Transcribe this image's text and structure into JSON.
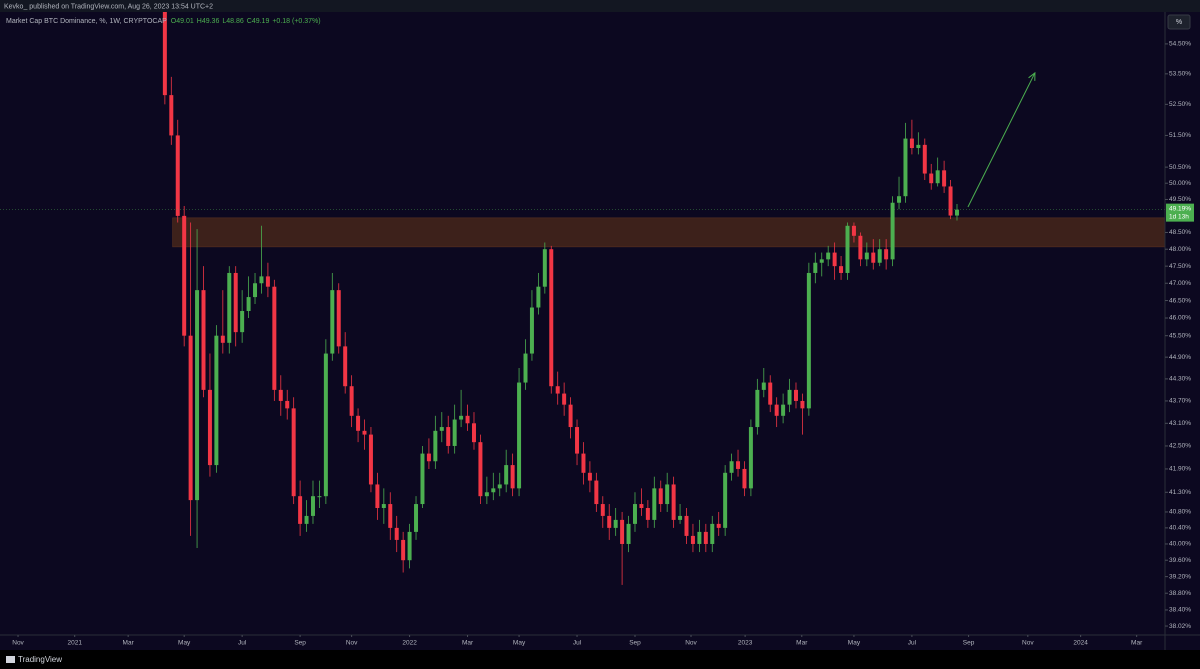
{
  "header": {
    "published": "Kevko_ published on TradingView.com, Aug 26, 2023 13:54 UTC+2",
    "legend": {
      "title": "Market Cap BTC Dominance, %, 1W, CRYPTOCAP",
      "open": "O49.01",
      "high": "H49.36",
      "low": "L48.86",
      "close": "C49.19",
      "change": "+0.18 (+0.37%)"
    },
    "scale_button": "%"
  },
  "footer": {
    "brand": "TradingView"
  },
  "chart_data": {
    "type": "candlestick",
    "up_color": "#4caf50",
    "down_color": "#f23645",
    "log": true,
    "open": [
      55.8,
      52.8,
      51.5,
      49.0,
      45.5,
      41.1,
      46.8,
      44.0,
      42.0,
      45.5,
      45.3,
      47.3,
      45.6,
      46.2,
      46.6,
      47.0,
      47.2,
      46.9,
      44.0,
      43.7,
      43.5,
      41.2,
      40.5,
      40.7,
      41.2,
      41.2,
      45.0,
      46.8,
      45.2,
      44.1,
      43.3,
      42.9,
      42.8,
      41.5,
      40.9,
      41.0,
      40.4,
      40.1,
      39.6,
      40.3,
      41.0,
      42.3,
      42.1,
      42.9,
      43.0,
      42.5,
      43.2,
      43.3,
      43.1,
      42.6,
      41.2,
      41.3,
      41.4,
      41.5,
      42.0,
      41.4,
      44.2,
      45.0,
      46.3,
      46.9,
      48.0,
      44.1,
      43.9,
      43.6,
      43.0,
      42.3,
      41.8,
      41.6,
      41.0,
      40.7,
      40.4,
      40.6,
      40.0,
      40.5,
      41.0,
      40.9,
      40.6,
      41.4,
      41.0,
      41.5,
      40.6,
      40.7,
      40.2,
      40.0,
      40.3,
      40.0,
      40.5,
      40.4,
      41.8,
      42.1,
      41.9,
      41.4,
      43.0,
      44.0,
      44.2,
      43.6,
      43.3,
      43.6,
      44.0,
      43.7,
      43.5,
      47.3,
      47.6,
      47.7,
      47.9,
      47.5,
      47.3,
      48.7,
      48.4,
      47.7,
      47.9,
      47.6,
      48.0,
      47.7,
      49.4,
      49.6,
      51.4,
      51.1,
      51.2,
      50.3,
      50.0,
      50.4,
      49.9,
      49.01
    ],
    "high": [
      56.0,
      53.4,
      52.0,
      49.3,
      48.8,
      48.6,
      47.5,
      45.0,
      45.8,
      46.8,
      47.5,
      47.5,
      46.8,
      47.2,
      47.3,
      48.7,
      47.6,
      47.1,
      44.4,
      44.0,
      43.8,
      41.6,
      41.1,
      41.6,
      41.6,
      45.4,
      47.3,
      47.0,
      45.6,
      44.4,
      43.5,
      43.2,
      43.0,
      41.8,
      41.4,
      41.3,
      40.7,
      40.3,
      40.5,
      41.2,
      42.5,
      42.7,
      43.3,
      43.4,
      43.3,
      43.6,
      44.0,
      43.6,
      43.4,
      42.8,
      41.7,
      41.8,
      41.8,
      42.4,
      42.3,
      44.6,
      45.4,
      46.8,
      47.3,
      48.2,
      48.1,
      44.5,
      44.2,
      43.8,
      43.2,
      42.6,
      42.1,
      41.8,
      41.2,
      41.0,
      40.9,
      40.8,
      40.7,
      41.3,
      41.4,
      41.1,
      41.7,
      41.6,
      41.8,
      41.7,
      41.0,
      40.9,
      40.5,
      40.6,
      40.5,
      40.7,
      40.8,
      42.0,
      42.3,
      42.4,
      42.1,
      43.2,
      44.3,
      44.6,
      44.4,
      43.8,
      43.9,
      44.3,
      44.2,
      43.9,
      47.6,
      47.9,
      47.9,
      48.1,
      48.2,
      47.8,
      48.8,
      48.8,
      48.5,
      48.2,
      48.3,
      48.3,
      48.3,
      49.6,
      50.2,
      51.9,
      52.0,
      51.6,
      51.4,
      50.6,
      50.8,
      50.7,
      50.1,
      49.36
    ],
    "low": [
      52.5,
      51.2,
      48.8,
      45.2,
      40.2,
      39.9,
      43.8,
      41.7,
      41.8,
      45.0,
      45.0,
      45.2,
      45.3,
      46.0,
      46.4,
      46.7,
      46.6,
      43.7,
      43.3,
      43.2,
      41.0,
      40.2,
      40.3,
      40.5,
      40.9,
      41.0,
      44.8,
      45.0,
      43.9,
      43.0,
      42.6,
      42.4,
      41.3,
      40.6,
      40.5,
      40.1,
      39.8,
      39.3,
      39.4,
      40.1,
      40.9,
      41.9,
      41.9,
      42.6,
      42.3,
      42.3,
      43.0,
      42.9,
      42.4,
      41.0,
      41.0,
      41.1,
      41.2,
      41.3,
      41.2,
      41.2,
      44.0,
      44.8,
      46.1,
      46.7,
      43.9,
      43.6,
      43.3,
      42.7,
      42.0,
      41.5,
      41.3,
      40.8,
      40.4,
      40.1,
      40.2,
      39.0,
      39.8,
      40.3,
      40.7,
      40.4,
      40.4,
      40.8,
      40.8,
      40.4,
      40.5,
      40.0,
      39.8,
      39.8,
      39.8,
      39.8,
      40.2,
      40.2,
      41.6,
      41.7,
      41.2,
      41.2,
      42.8,
      43.8,
      43.4,
      43.0,
      43.1,
      43.4,
      43.5,
      42.8,
      43.3,
      47.0,
      47.2,
      47.5,
      47.1,
      47.1,
      47.1,
      48.2,
      47.5,
      47.5,
      47.4,
      47.5,
      47.4,
      47.5,
      49.2,
      49.4,
      50.9,
      50.9,
      50.1,
      49.8,
      49.9,
      49.7,
      48.9,
      48.86
    ],
    "close": [
      52.8,
      51.5,
      49.0,
      45.5,
      41.1,
      46.8,
      44.0,
      42.0,
      45.5,
      45.3,
      47.3,
      45.6,
      46.2,
      46.6,
      47.0,
      47.2,
      46.9,
      44.0,
      43.7,
      43.5,
      41.2,
      40.5,
      40.7,
      41.2,
      41.2,
      45.0,
      46.8,
      45.2,
      44.1,
      43.3,
      42.9,
      42.8,
      41.5,
      40.9,
      41.0,
      40.4,
      40.1,
      39.6,
      40.3,
      41.0,
      42.3,
      42.1,
      42.9,
      43.0,
      42.5,
      43.2,
      43.3,
      43.1,
      42.6,
      41.2,
      41.3,
      41.4,
      41.5,
      42.0,
      41.4,
      44.2,
      45.0,
      46.3,
      46.9,
      48.0,
      44.1,
      43.9,
      43.6,
      43.0,
      42.3,
      41.8,
      41.6,
      41.0,
      40.7,
      40.4,
      40.6,
      40.0,
      40.5,
      41.0,
      40.9,
      40.6,
      41.4,
      41.0,
      41.5,
      40.6,
      40.7,
      40.2,
      40.0,
      40.3,
      40.0,
      40.5,
      40.4,
      41.8,
      42.1,
      41.9,
      41.4,
      43.0,
      44.0,
      44.2,
      43.6,
      43.3,
      43.6,
      44.0,
      43.7,
      43.5,
      47.3,
      47.6,
      47.7,
      47.9,
      47.5,
      47.3,
      48.7,
      48.4,
      47.7,
      47.9,
      47.6,
      48.0,
      47.7,
      49.4,
      49.6,
      51.4,
      51.1,
      51.2,
      50.3,
      50.0,
      50.4,
      49.9,
      49.01,
      49.19
    ],
    "price_label": "49.19%",
    "countdown": "1d 13h",
    "xlim": [
      -25.6,
      155.3
    ],
    "xticks": [
      {
        "value": -22.8,
        "label": "Nov"
      },
      {
        "value": -14,
        "label": "2021"
      },
      {
        "value": -5.7,
        "label": "Mar"
      },
      {
        "value": 3,
        "label": "May"
      },
      {
        "value": 12,
        "label": "Jul"
      },
      {
        "value": 21,
        "label": "Sep"
      },
      {
        "value": 29,
        "label": "Nov"
      },
      {
        "value": 38,
        "label": "2022"
      },
      {
        "value": 47,
        "label": "Mar"
      },
      {
        "value": 55,
        "label": "May"
      },
      {
        "value": 64,
        "label": "Jul"
      },
      {
        "value": 73,
        "label": "Sep"
      },
      {
        "value": 81.7,
        "label": "Nov"
      },
      {
        "value": 90.1,
        "label": "2023"
      },
      {
        "value": 98.9,
        "label": "Mar"
      },
      {
        "value": 107,
        "label": "May"
      },
      {
        "value": 116,
        "label": "Jul"
      },
      {
        "value": 124.8,
        "label": "Sep"
      },
      {
        "value": 134,
        "label": "Nov"
      },
      {
        "value": 142.2,
        "label": "2024"
      },
      {
        "value": 150.9,
        "label": "Mar"
      }
    ],
    "ylim": [
      37.81,
      56.0
    ],
    "yticks": [
      {
        "value": 54.5,
        "label": "54.50%"
      },
      {
        "value": 53.5,
        "label": "53.50%"
      },
      {
        "value": 52.5,
        "label": "52.50%"
      },
      {
        "value": 51.5,
        "label": "51.50%"
      },
      {
        "value": 50.5,
        "label": "50.50%"
      },
      {
        "value": 50,
        "label": "50.00%"
      },
      {
        "value": 49.5,
        "label": "49.50%"
      },
      {
        "value": 48.5,
        "label": "48.50%"
      },
      {
        "value": 48,
        "label": "48.00%"
      },
      {
        "value": 47.5,
        "label": "47.50%"
      },
      {
        "value": 47,
        "label": "47.00%"
      },
      {
        "value": 46.5,
        "label": "46.50%"
      },
      {
        "value": 46,
        "label": "46.00%"
      },
      {
        "value": 45.5,
        "label": "45.50%"
      },
      {
        "value": 44.9,
        "label": "44.90%"
      },
      {
        "value": 44.3,
        "label": "44.30%"
      },
      {
        "value": 43.7,
        "label": "43.70%"
      },
      {
        "value": 43.1,
        "label": "43.10%"
      },
      {
        "value": 42.5,
        "label": "42.50%"
      },
      {
        "value": 41.9,
        "label": "41.90%"
      },
      {
        "value": 41.3,
        "label": "41.30%"
      },
      {
        "value": 40.8,
        "label": "40.80%"
      },
      {
        "value": 40.4,
        "label": "40.40%"
      },
      {
        "value": 40,
        "label": "40.00%"
      },
      {
        "value": 39.6,
        "label": "39.60%"
      },
      {
        "value": 39.2,
        "label": "39.20%"
      },
      {
        "value": 38.8,
        "label": "38.80%"
      },
      {
        "value": 38.4,
        "label": "38.40%"
      },
      {
        "value": 38.02,
        "label": "38.02%"
      }
    ],
    "zone": {
      "x": 1.2,
      "low": 48.07,
      "high": 48.94,
      "color": "#3d211b"
    },
    "arrow": {
      "x": [
        124.7,
        135.1
      ],
      "y": [
        49.27,
        53.53
      ],
      "color": "#4caf50"
    }
  }
}
